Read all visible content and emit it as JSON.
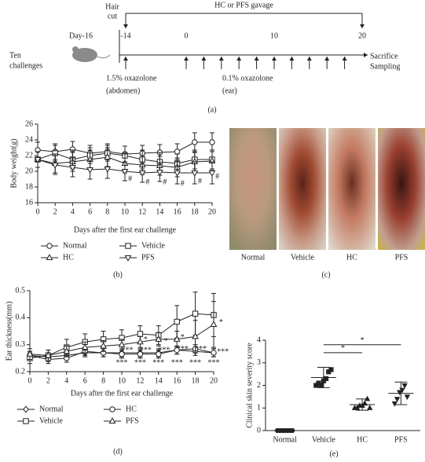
{
  "timeline": {
    "title": "HC or PFS gavage",
    "hair_cut": [
      "Hair",
      "cut"
    ],
    "left_label": [
      "Ten",
      "challenges"
    ],
    "start_label": "Day-16",
    "gavage_days": [
      -14,
      20
    ],
    "day_ticks": [
      -14,
      0,
      10,
      20
    ],
    "challenge_days": [
      -14,
      0,
      2,
      4,
      6,
      8,
      10,
      12,
      14,
      16,
      18
    ],
    "sensitization": [
      "1.5% oxazolone",
      "(abdomen)"
    ],
    "challenge": [
      "0.1% oxazolone",
      "(ear)"
    ],
    "end_label": [
      "Sacrifice",
      "Sampling"
    ],
    "panel": "(a)"
  },
  "photos": {
    "labels": [
      "Normal",
      "Vehicle",
      "HC",
      "PFS"
    ],
    "panel": "(c)"
  },
  "chart_data": [
    {
      "type": "line",
      "panel": "(b)",
      "x_label": "Days after the first ear challenge",
      "y_label": "Body weight(g)",
      "x": [
        0,
        2,
        4,
        6,
        8,
        10,
        12,
        14,
        16,
        18,
        20
      ],
      "xlim": [
        0,
        20
      ],
      "xticks": [
        0,
        2,
        4,
        6,
        8,
        10,
        12,
        14,
        16,
        18,
        20
      ],
      "ylim": [
        16,
        26
      ],
      "yticks": [
        16,
        18,
        20,
        22,
        24,
        26
      ],
      "series": [
        {
          "name": "Normal",
          "marker": "circle",
          "color": "#000000",
          "values": [
            22.7,
            22.5,
            22.8,
            22.3,
            22.5,
            22.2,
            22.3,
            22.4,
            22.5,
            23.7,
            23.7
          ],
          "errors": [
            1.0,
            1.0,
            1.0,
            1.0,
            1.0,
            1.0,
            1.0,
            1.0,
            1.0,
            1.2,
            1.2
          ]
        },
        {
          "name": "Vehicle",
          "marker": "square",
          "color": "#000000",
          "values": [
            21.5,
            22.3,
            21.5,
            22.0,
            22.3,
            22.0,
            21.5,
            21.2,
            21.0,
            21.5,
            21.5
          ],
          "errors": [
            1.0,
            1.0,
            1.2,
            1.0,
            1.0,
            1.2,
            1.2,
            1.2,
            1.2,
            1.2,
            1.2
          ]
        },
        {
          "name": "HC",
          "marker": "triangle",
          "color": "#000000",
          "values": [
            21.5,
            21.0,
            21.2,
            21.5,
            21.8,
            21.0,
            20.8,
            20.7,
            20.5,
            21.2,
            21.3
          ],
          "errors": [
            1.0,
            1.2,
            1.2,
            1.2,
            1.2,
            1.2,
            1.2,
            1.2,
            1.2,
            1.2,
            1.2
          ]
        },
        {
          "name": "PFS",
          "marker": "invtriangle",
          "color": "#000000",
          "values": [
            21.5,
            20.8,
            20.5,
            20.2,
            20.3,
            20.0,
            19.8,
            19.9,
            19.8,
            19.8,
            19.8
          ],
          "errors": [
            1.0,
            1.2,
            1.2,
            1.2,
            1.2,
            1.2,
            1.2,
            1.2,
            1.4,
            1.4,
            1.4
          ]
        }
      ],
      "annotations": [
        {
          "text": "#",
          "x": 10.6,
          "y": 19.0
        },
        {
          "text": "#",
          "x": 12.6,
          "y": 18.6
        },
        {
          "text": "#",
          "x": 14.6,
          "y": 18.6
        },
        {
          "text": "#",
          "x": 16.6,
          "y": 18.4
        },
        {
          "text": "#",
          "x": 18.6,
          "y": 18.7
        },
        {
          "text": "#",
          "x": 20.6,
          "y": 19.3
        }
      ]
    },
    {
      "type": "line",
      "panel": "(d)",
      "x_label": "Days after the first ear challenge",
      "y_label": "Ear thickness(mm)",
      "x": [
        0,
        2,
        4,
        6,
        8,
        10,
        12,
        14,
        16,
        18,
        20
      ],
      "xlim": [
        0,
        20
      ],
      "xticks": [
        0,
        2,
        4,
        6,
        8,
        10,
        12,
        14,
        16,
        18,
        20
      ],
      "ylim": [
        0.2,
        0.5
      ],
      "yticks": [
        0.2,
        0.3,
        0.4,
        0.5
      ],
      "series": [
        {
          "name": "Normal",
          "marker": "diamond",
          "color": "#000000",
          "values": [
            0.26,
            0.255,
            0.26,
            0.27,
            0.27,
            0.27,
            0.27,
            0.27,
            0.28,
            0.275,
            0.27
          ],
          "errors": [
            0.015,
            0.015,
            0.015,
            0.015,
            0.015,
            0.015,
            0.015,
            0.015,
            0.015,
            0.015,
            0.015
          ]
        },
        {
          "name": "HC",
          "marker": "circle",
          "color": "#000000",
          "values": [
            0.26,
            0.245,
            0.25,
            0.275,
            0.27,
            0.265,
            0.265,
            0.265,
            0.28,
            0.285,
            0.27
          ],
          "errors": [
            0.015,
            0.015,
            0.015,
            0.015,
            0.015,
            0.015,
            0.015,
            0.015,
            0.015,
            0.015,
            0.015
          ]
        },
        {
          "name": "Vehicle",
          "marker": "square",
          "color": "#000000",
          "values": [
            0.25,
            0.26,
            0.29,
            0.31,
            0.32,
            0.325,
            0.34,
            0.335,
            0.385,
            0.415,
            0.41
          ],
          "errors": [
            0.02,
            0.02,
            0.03,
            0.03,
            0.03,
            0.03,
            0.03,
            0.035,
            0.06,
            0.08,
            0.08
          ]
        },
        {
          "name": "PFS",
          "marker": "triangle",
          "color": "#000000",
          "values": [
            0.265,
            0.26,
            0.275,
            0.29,
            0.295,
            0.3,
            0.31,
            0.32,
            0.32,
            0.33,
            0.375
          ],
          "errors": [
            0.02,
            0.02,
            0.02,
            0.02,
            0.02,
            0.02,
            0.02,
            0.025,
            0.03,
            0.06,
            0.085
          ]
        }
      ],
      "annotations": [
        {
          "text": "***",
          "x": 10,
          "y": 0.232
        },
        {
          "text": "***",
          "x": 12,
          "y": 0.232
        },
        {
          "text": "***",
          "x": 14,
          "y": 0.232
        },
        {
          "text": "***",
          "x": 16,
          "y": 0.232
        },
        {
          "text": "***",
          "x": 18,
          "y": 0.232
        },
        {
          "text": "***",
          "x": 20,
          "y": 0.232
        },
        {
          "text": "***",
          "x": 10.6,
          "y": 0.278
        },
        {
          "text": "***",
          "x": 12.6,
          "y": 0.278
        },
        {
          "text": "***",
          "x": 14.6,
          "y": 0.278
        },
        {
          "text": "***",
          "x": 16.6,
          "y": 0.282
        },
        {
          "text": "***",
          "x": 18.6,
          "y": 0.282
        },
        {
          "text": "***",
          "x": 21,
          "y": 0.272
        },
        {
          "text": "*",
          "x": 12.6,
          "y": 0.318
        },
        {
          "text": "*",
          "x": 14.8,
          "y": 0.312
        },
        {
          "text": "*",
          "x": 16.6,
          "y": 0.326
        },
        {
          "text": "*",
          "x": 20.8,
          "y": 0.382
        }
      ]
    },
    {
      "type": "dot",
      "panel": "(e)",
      "y_label": "Clinical skin severity score",
      "categories": [
        "Normal",
        "Vehicle",
        "HC",
        "PFS"
      ],
      "markers": [
        "circle",
        "square",
        "triangle",
        "invtriangle"
      ],
      "ylim": [
        0,
        4
      ],
      "yticks": [
        0,
        1,
        2,
        3,
        4
      ],
      "points": [
        [
          0,
          0,
          0,
          0,
          0,
          0,
          0
        ],
        [
          2.0,
          2.1,
          2.0,
          2.2,
          2.3,
          2.6,
          2.7
        ],
        [
          1.0,
          1.0,
          1.1,
          1.1,
          1.2,
          1.4,
          1.0
        ],
        [
          1.2,
          1.4,
          1.7,
          1.8,
          2.0,
          1.5
        ]
      ],
      "means": [
        0,
        2.35,
        1.15,
        1.65
      ],
      "errors": [
        0,
        0.45,
        0.25,
        0.5
      ],
      "brackets": [
        {
          "between": [
            "Vehicle",
            "HC"
          ],
          "y": 3.45,
          "text": "*"
        },
        {
          "between": [
            "Vehicle",
            "PFS"
          ],
          "y": 3.8,
          "text": "*"
        }
      ]
    }
  ]
}
